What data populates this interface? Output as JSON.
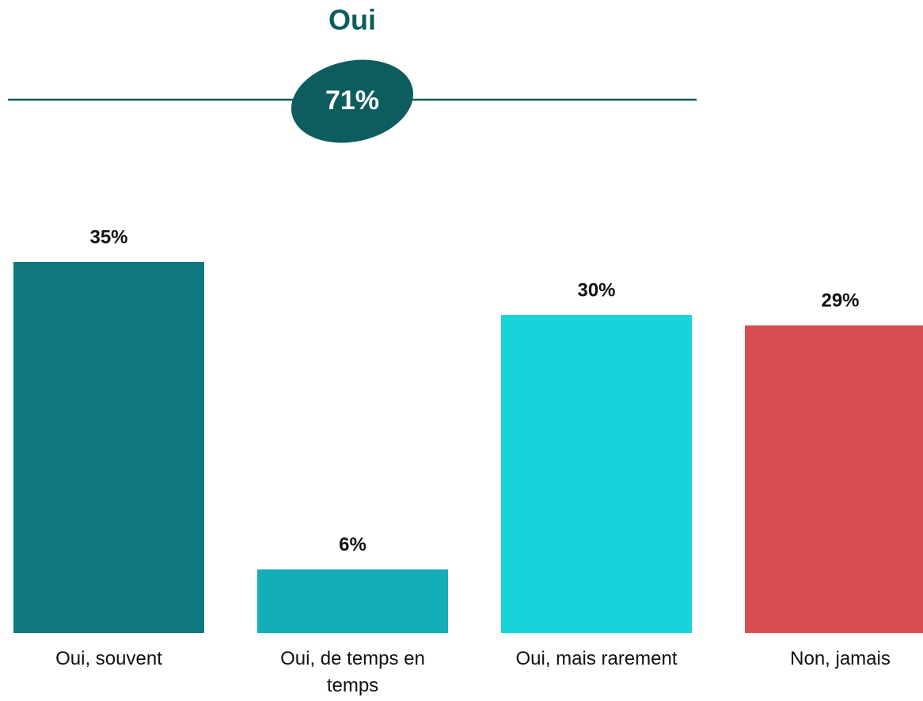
{
  "chart_data": {
    "type": "bar",
    "summary": {
      "title": "Oui",
      "value": 71,
      "value_label": "71%"
    },
    "categories": [
      "Oui, souvent",
      "Oui, de temps en temps",
      "Oui, mais rarement",
      "Non, jamais"
    ],
    "values": [
      35,
      6,
      30,
      29
    ],
    "value_labels": [
      "35%",
      "6%",
      "30%",
      "29%"
    ],
    "colors": [
      "#0f7880",
      "#13aeb6",
      "#19d3db",
      "#d64e4f"
    ]
  }
}
